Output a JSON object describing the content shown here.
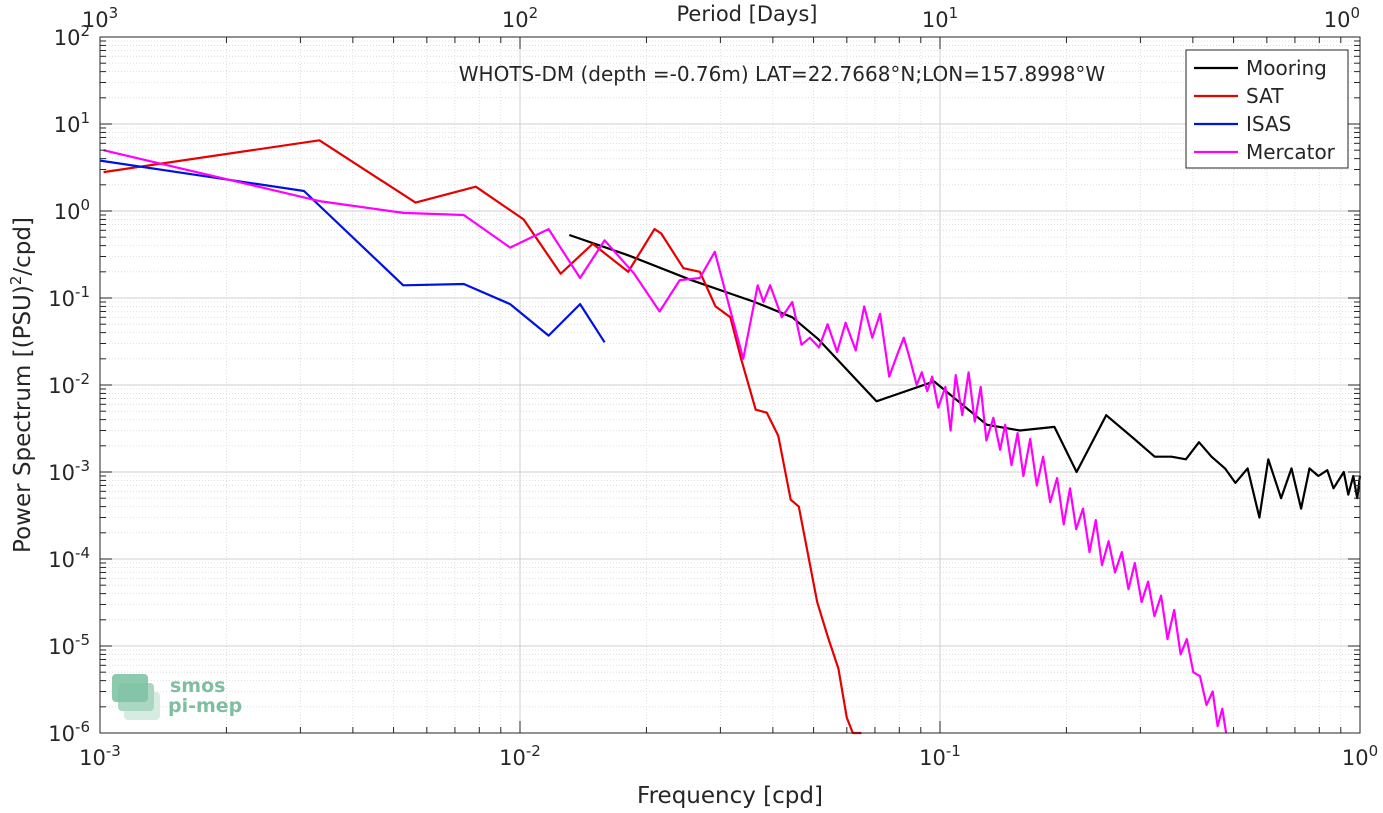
{
  "chart_data": {
    "type": "line",
    "title": "WHOTS-DM (depth =-0.76m) LAT=22.7668°N;LON=157.8998°W",
    "xlabel": "Frequency [cpd]",
    "ylabel_main": "Power Spectrum [(PSU)",
    "ylabel_sup": "2",
    "ylabel_tail": "/cpd]",
    "top_xlabel": "Period [Days]",
    "x_scale": "log",
    "y_scale": "log",
    "xlim": [
      0.001,
      1
    ],
    "ylim": [
      1e-06,
      100
    ],
    "grid": true,
    "legend_position": "top-right",
    "x_ticks": [
      {
        "value": 0.001,
        "base": "10",
        "exp": "-3"
      },
      {
        "value": 0.01,
        "base": "10",
        "exp": "-2"
      },
      {
        "value": 0.1,
        "base": "10",
        "exp": "-1"
      },
      {
        "value": 1,
        "base": "10",
        "exp": "0"
      }
    ],
    "top_ticks": [
      {
        "value": 0.001,
        "base": "10",
        "exp": "3"
      },
      {
        "value": 0.01,
        "base": "10",
        "exp": "2"
      },
      {
        "value": 0.1,
        "base": "10",
        "exp": "1"
      },
      {
        "value": 1,
        "base": "10",
        "exp": "0"
      }
    ],
    "y_ticks": [
      {
        "value": 100,
        "base": "10",
        "exp": "2"
      },
      {
        "value": 10,
        "base": "10",
        "exp": "1"
      },
      {
        "value": 1,
        "base": "10",
        "exp": "0"
      },
      {
        "value": 0.1,
        "base": "10",
        "exp": "-1"
      },
      {
        "value": 0.01,
        "base": "10",
        "exp": "-2"
      },
      {
        "value": 0.001,
        "base": "10",
        "exp": "-3"
      },
      {
        "value": 0.0001,
        "base": "10",
        "exp": "-4"
      },
      {
        "value": 1e-05,
        "base": "10",
        "exp": "-5"
      },
      {
        "value": 1e-06,
        "base": "10",
        "exp": "-6"
      }
    ],
    "series": [
      {
        "name": "Mooring",
        "color": "#000000",
        "x": [
          0.0131,
          0.0181,
          0.0256,
          0.0362,
          0.0445,
          0.0512,
          0.0706,
          0.0968,
          0.1292,
          0.155,
          0.1872,
          0.2115,
          0.2487,
          0.29,
          0.3245,
          0.356,
          0.385,
          0.4137,
          0.443,
          0.477,
          0.505,
          0.54,
          0.576,
          0.605,
          0.649,
          0.687,
          0.724,
          0.758,
          0.796,
          0.836,
          0.865,
          0.915,
          0.938,
          0.964,
          0.985,
          1.0
        ],
        "y": [
          0.53,
          0.31,
          0.16,
          0.09,
          0.06,
          0.034,
          0.0065,
          0.011,
          0.0035,
          0.003,
          0.0033,
          0.001,
          0.0045,
          0.0024,
          0.0015,
          0.0015,
          0.0014,
          0.0022,
          0.0015,
          0.0011,
          0.00075,
          0.0011,
          0.0003,
          0.0014,
          0.0005,
          0.0011,
          0.00038,
          0.0011,
          0.0009,
          0.00105,
          0.00065,
          0.001,
          0.00055,
          0.0009,
          0.0005,
          0.0009
        ]
      },
      {
        "name": "SAT",
        "color": "#e60000",
        "x": [
          0.00102,
          0.00333,
          0.00564,
          0.00785,
          0.0102,
          0.0125,
          0.0149,
          0.0181,
          0.0209,
          0.0217,
          0.0245,
          0.0268,
          0.0292,
          0.0317,
          0.0336,
          0.0364,
          0.0387,
          0.0412,
          0.0441,
          0.0461,
          0.051,
          0.054,
          0.0573,
          0.06,
          0.062,
          0.065
        ],
        "y": [
          2.8,
          6.5,
          1.25,
          1.9,
          0.8,
          0.19,
          0.42,
          0.2,
          0.62,
          0.55,
          0.22,
          0.2,
          0.08,
          0.06,
          0.02,
          0.0052,
          0.0048,
          0.0026,
          0.00048,
          0.0004,
          3.2e-05,
          1.3e-05,
          5.5e-06,
          1.5e-06,
          9.5e-07,
          6e-07
        ]
      },
      {
        "name": "ISAS",
        "color": "#0012e0",
        "x": [
          0.001,
          0.00306,
          0.00527,
          0.00735,
          0.00947,
          0.0117,
          0.0139,
          0.0159
        ],
        "y": [
          3.8,
          1.7,
          0.14,
          0.145,
          0.085,
          0.037,
          0.085,
          0.031
        ]
      },
      {
        "name": "Mercator",
        "color": "#ff00ff",
        "x": [
          0.00102,
          0.00333,
          0.00527,
          0.00735,
          0.00947,
          0.0117,
          0.0139,
          0.0159,
          0.0187,
          0.0215,
          0.024,
          0.0268,
          0.0291,
          0.0313,
          0.034,
          0.0368,
          0.038,
          0.0394,
          0.042,
          0.0445,
          0.0468,
          0.049,
          0.0515,
          0.054,
          0.0569,
          0.0596,
          0.063,
          0.066,
          0.069,
          0.072,
          0.0757,
          0.079,
          0.082,
          0.085,
          0.088,
          0.0905,
          0.0932,
          0.0958,
          0.099,
          0.103,
          0.106,
          0.109,
          0.113,
          0.117,
          0.121,
          0.125,
          0.129,
          0.134,
          0.139,
          0.143,
          0.148,
          0.153,
          0.158,
          0.164,
          0.17,
          0.176,
          0.183,
          0.19,
          0.197,
          0.204,
          0.211,
          0.219,
          0.227,
          0.235,
          0.243,
          0.252,
          0.261,
          0.271,
          0.281,
          0.291,
          0.302,
          0.313,
          0.324,
          0.336,
          0.348,
          0.361,
          0.374,
          0.387,
          0.401,
          0.416,
          0.431,
          0.446,
          0.458,
          0.47,
          0.48
        ],
        "y": [
          5.0,
          1.3,
          0.95,
          0.9,
          0.38,
          0.62,
          0.17,
          0.46,
          0.19,
          0.07,
          0.16,
          0.17,
          0.34,
          0.09,
          0.02,
          0.14,
          0.09,
          0.14,
          0.06,
          0.09,
          0.029,
          0.035,
          0.027,
          0.05,
          0.024,
          0.052,
          0.025,
          0.08,
          0.035,
          0.066,
          0.0125,
          0.022,
          0.035,
          0.019,
          0.01,
          0.014,
          0.0085,
          0.0125,
          0.0055,
          0.0095,
          0.003,
          0.013,
          0.0045,
          0.014,
          0.0038,
          0.0095,
          0.0023,
          0.0042,
          0.0018,
          0.0035,
          0.0012,
          0.0028,
          0.0009,
          0.0024,
          0.0007,
          0.0015,
          0.00045,
          0.00085,
          0.00025,
          0.00065,
          0.00022,
          0.00038,
          0.00012,
          0.00028,
          8.5e-05,
          0.00016,
          7e-05,
          0.00012,
          4.5e-05,
          9e-05,
          3.2e-05,
          5.5e-05,
          2.2e-05,
          3.8e-05,
          1.2e-05,
          2.6e-05,
          8e-06,
          1.2e-05,
          5e-06,
          4.5e-06,
          2.1e-06,
          3e-06,
          1.2e-06,
          1.9e-06,
          8e-07
        ]
      }
    ]
  },
  "watermark": {
    "line1": "smos",
    "line2": "pi-mep"
  }
}
